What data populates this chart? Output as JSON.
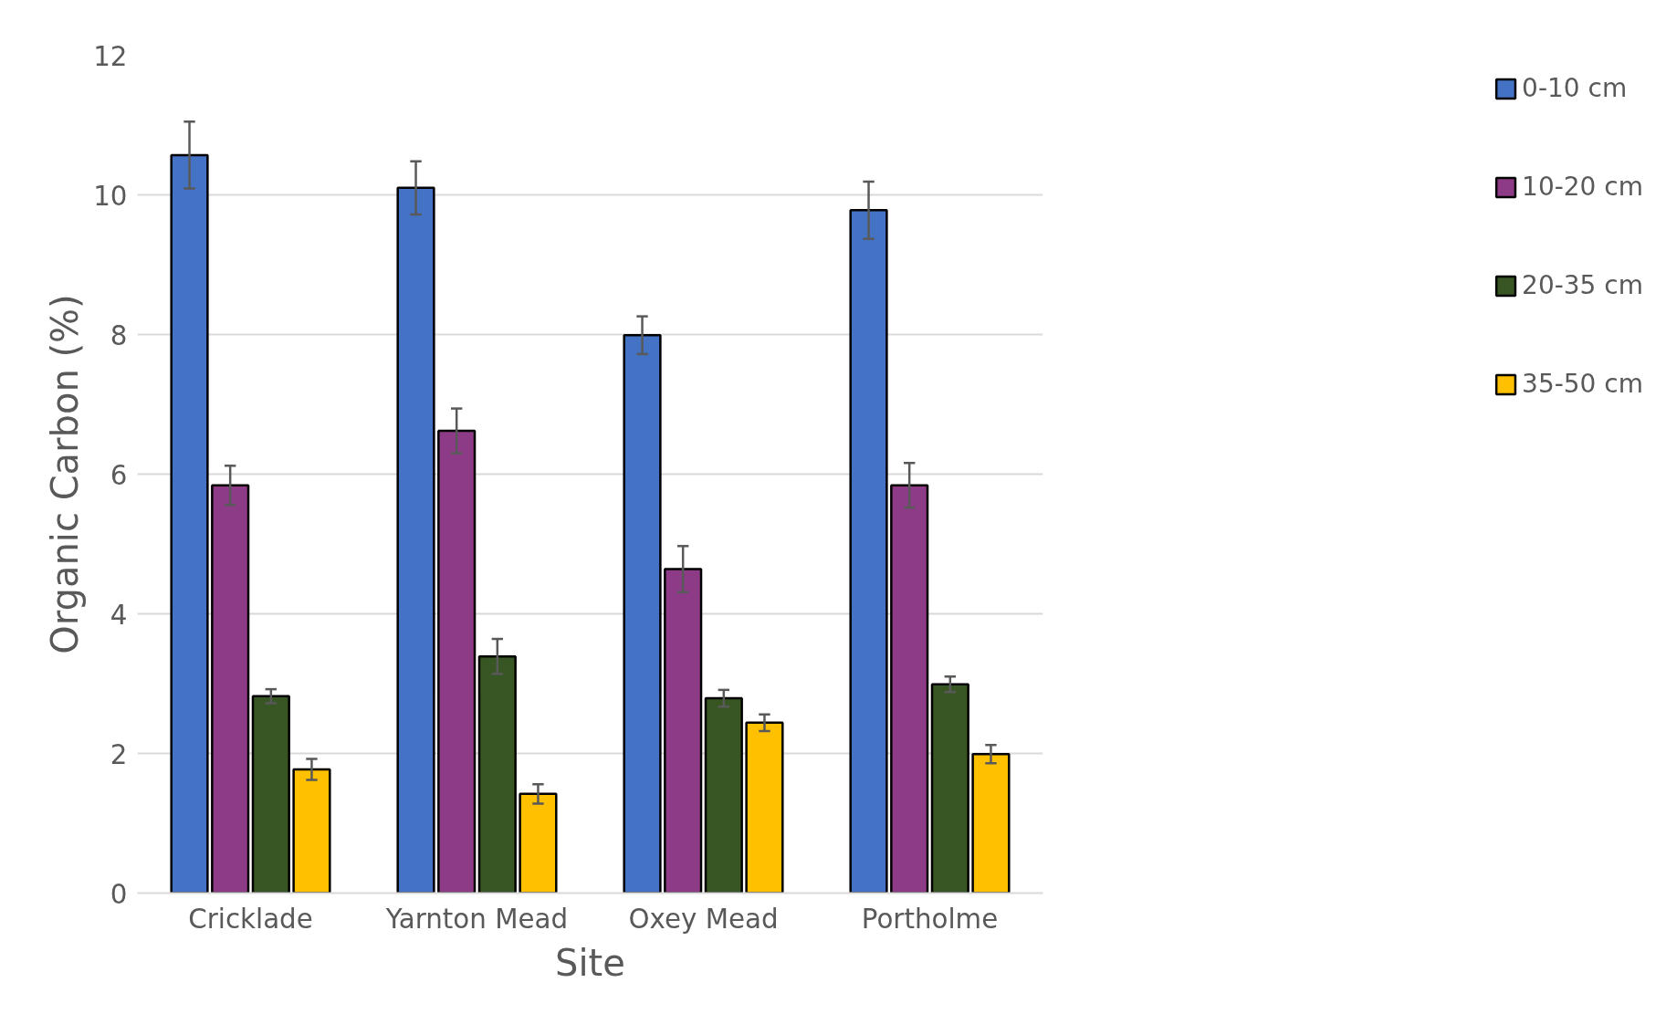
{
  "chart_data": {
    "type": "bar",
    "xlabel": "Site",
    "ylabel": "Organic Carbon (%)",
    "categories": [
      "Cricklade",
      "Yarnton Mead",
      "Oxey Mead",
      "Portholme"
    ],
    "series": [
      {
        "name": "0-10 cm",
        "color": "#4472c4",
        "values": [
          10.57,
          10.1,
          7.99,
          9.78
        ],
        "errors": [
          0.48,
          0.38,
          0.27,
          0.41
        ]
      },
      {
        "name": "10-20 cm",
        "color": "#8e3b87",
        "values": [
          5.84,
          6.62,
          4.64,
          5.84
        ],
        "errors": [
          0.28,
          0.32,
          0.33,
          0.32
        ]
      },
      {
        "name": "20-35 cm",
        "color": "#375623",
        "values": [
          2.82,
          3.39,
          2.79,
          2.99
        ],
        "errors": [
          0.1,
          0.25,
          0.12,
          0.11
        ]
      },
      {
        "name": "35-50 cm",
        "color": "#ffc000",
        "values": [
          1.77,
          1.42,
          2.44,
          1.99
        ],
        "errors": [
          0.15,
          0.14,
          0.12,
          0.13
        ]
      }
    ],
    "ylim": [
      0,
      12
    ],
    "yticks": [
      0,
      2,
      4,
      6,
      8,
      10,
      12
    ],
    "grid": "y",
    "legend": "right"
  }
}
